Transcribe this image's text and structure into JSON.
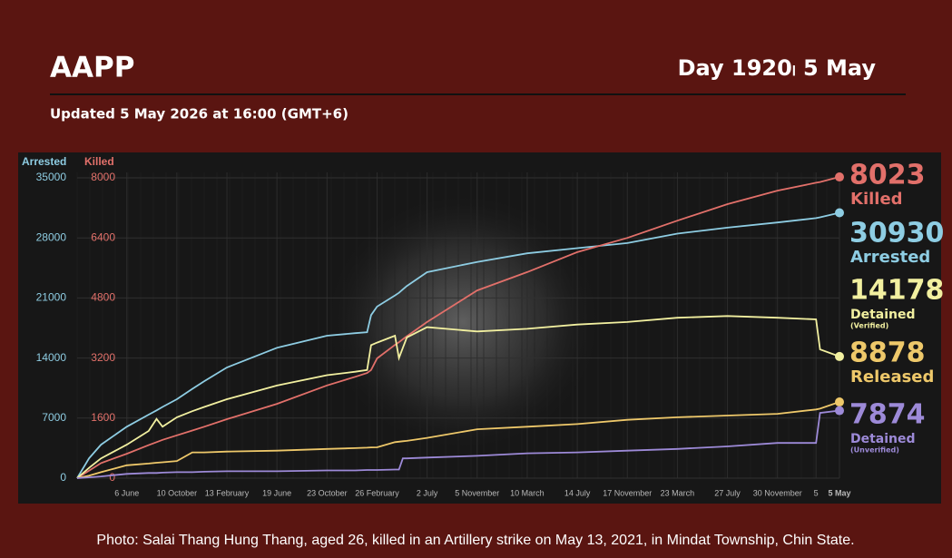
{
  "header": {
    "title": "AAPP",
    "day": "Day 1920၊ 5 May",
    "updated": "Updated 5 May 2026 at 16:00 (GMT+6)"
  },
  "chart_data": {
    "type": "line",
    "ylabel": "Arrested",
    "y2label": "Killed",
    "x": [
      0,
      30,
      60,
      125,
      180,
      200,
      215,
      251,
      290,
      320,
      377,
      503,
      629,
      700,
      730,
      740,
      755,
      800,
      810,
      820,
      830,
      881,
      1007,
      1133,
      1259,
      1385,
      1511,
      1637,
      1763,
      1860,
      1870,
      1919
    ],
    "xlim": [
      0,
      1919
    ],
    "xticks": [
      {
        "value": 125,
        "label": "6 June"
      },
      {
        "value": 251,
        "label": "10 October"
      },
      {
        "value": 377,
        "label": "13 February"
      },
      {
        "value": 503,
        "label": "19 June"
      },
      {
        "value": 629,
        "label": "23 October"
      },
      {
        "value": 755,
        "label": "26 February"
      },
      {
        "value": 881,
        "label": "2 July"
      },
      {
        "value": 1007,
        "label": "5 November"
      },
      {
        "value": 1133,
        "label": "10 March"
      },
      {
        "value": 1259,
        "label": "14 July"
      },
      {
        "value": 1385,
        "label": "17 November"
      },
      {
        "value": 1511,
        "label": "23 March"
      },
      {
        "value": 1637,
        "label": "27 July"
      },
      {
        "value": 1763,
        "label": "30 November"
      },
      {
        "value": 1860,
        "label": "5"
      },
      {
        "value": 1919,
        "label": "5 May"
      }
    ],
    "ylim": [
      0,
      35000
    ],
    "yticks": [
      0,
      7000,
      14000,
      21000,
      28000,
      35000
    ],
    "y2lim": [
      0,
      8000
    ],
    "y2ticks": [
      0,
      1600,
      3200,
      4800,
      6400,
      8000
    ],
    "grid": true,
    "series": [
      {
        "name": "Arrested",
        "color": "#8ecde3",
        "values": [
          0,
          2300,
          3900,
          6000,
          7400,
          7900,
          8300,
          9200,
          10400,
          11300,
          12900,
          15200,
          16600,
          16900,
          17000,
          19000,
          20000,
          21300,
          21600,
          22000,
          22400,
          24000,
          25200,
          26200,
          26800,
          27400,
          28500,
          29200,
          29800,
          30300,
          30400,
          30930
        ]
      },
      {
        "name": "Killed",
        "color": "#e2706a",
        "axis": "y2",
        "values": [
          0,
          200,
          400,
          650,
          880,
          960,
          1020,
          1140,
          1270,
          1370,
          1570,
          1980,
          2470,
          2700,
          2800,
          2880,
          3190,
          3550,
          3620,
          3700,
          3780,
          4160,
          5000,
          5490,
          6020,
          6400,
          6860,
          7300,
          7660,
          7870,
          7890,
          8023
        ]
      },
      {
        "name": "Detained",
        "sublabel": "(Verified)",
        "color": "#f2f0a0",
        "values": [
          0,
          1200,
          2300,
          3900,
          5500,
          6900,
          6000,
          7100,
          7800,
          8300,
          9200,
          10800,
          12000,
          12400,
          12600,
          15500,
          15800,
          16600,
          14000,
          15200,
          16400,
          17600,
          17100,
          17400,
          17900,
          18200,
          18700,
          18900,
          18700,
          18500,
          15000,
          14178
        ]
      },
      {
        "name": "Released",
        "color": "#eec86a",
        "values": [
          0,
          300,
          700,
          1500,
          1700,
          1800,
          1850,
          2000,
          3000,
          3000,
          3100,
          3200,
          3400,
          3500,
          3550,
          3580,
          3600,
          4200,
          4250,
          4300,
          4350,
          4700,
          5700,
          6000,
          6300,
          6800,
          7100,
          7300,
          7500,
          8000,
          8100,
          8878
        ]
      },
      {
        "name": "Detained",
        "sublabel": "(Unverified)",
        "color": "#9d8ad8",
        "values": [
          0,
          100,
          200,
          500,
          600,
          600,
          650,
          700,
          700,
          750,
          800,
          800,
          900,
          900,
          950,
          950,
          950,
          1000,
          1000,
          2300,
          2300,
          2400,
          2600,
          2900,
          3000,
          3200,
          3400,
          3700,
          4100,
          4100,
          7600,
          7874
        ]
      }
    ]
  },
  "caption": "Photo: Salai Thang Hung Thang, aged 26, killed in an Artillery strike on May 13, 2021, in Mindat Township, Chin State."
}
